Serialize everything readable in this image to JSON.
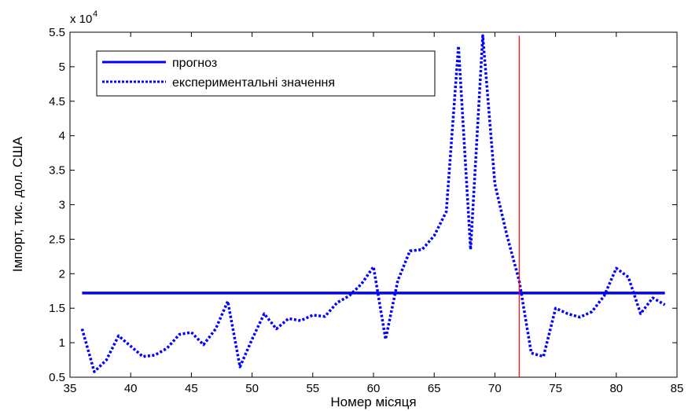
{
  "chart_data": {
    "type": "line",
    "xlabel": "Номер місяця",
    "ylabel": "Імпорт, тис. дол. США",
    "y_multiplier_label": "x 10",
    "y_multiplier_exponent": "4",
    "xlim": [
      35,
      85
    ],
    "ylim": [
      0.5,
      5.5
    ],
    "x_ticks": [
      35,
      40,
      45,
      50,
      55,
      60,
      65,
      70,
      75,
      80,
      85
    ],
    "y_ticks": [
      0.5,
      1,
      1.5,
      2,
      2.5,
      3,
      3.5,
      4,
      4.5,
      5,
      5.5
    ],
    "x_tick_labels": [
      "35",
      "40",
      "45",
      "50",
      "55",
      "60",
      "65",
      "70",
      "75",
      "80",
      "85"
    ],
    "y_tick_labels": [
      "0.5",
      "1",
      "1.5",
      "2",
      "2.5",
      "3",
      "3.5",
      "4",
      "4.5",
      "5",
      "5.5"
    ],
    "grid": false,
    "legend_position": "top-left",
    "series": [
      {
        "name": "прогноз",
        "style": "solid",
        "color": "#0000ff",
        "x": [
          36,
          84
        ],
        "y": [
          1.72,
          1.72
        ]
      },
      {
        "name": "експериментальні значення",
        "style": "dotted",
        "color": "#0000ff",
        "x": [
          36,
          37,
          38,
          39,
          40,
          41,
          42,
          43,
          44,
          45,
          46,
          47,
          48,
          49,
          50,
          51,
          52,
          53,
          54,
          55,
          56,
          57,
          58,
          59,
          60,
          61,
          62,
          63,
          64,
          65,
          66,
          67,
          68,
          69,
          70,
          71,
          72,
          73,
          74,
          75,
          76,
          77,
          78,
          79,
          80,
          81,
          82,
          83,
          84
        ],
        "y": [
          1.2,
          0.58,
          0.75,
          1.1,
          0.95,
          0.8,
          0.82,
          0.92,
          1.12,
          1.15,
          0.97,
          1.2,
          1.6,
          0.65,
          1.05,
          1.42,
          1.2,
          1.35,
          1.32,
          1.4,
          1.38,
          1.58,
          1.68,
          1.85,
          2.1,
          1.05,
          1.9,
          2.33,
          2.35,
          2.55,
          2.9,
          5.3,
          2.35,
          5.45,
          3.3,
          2.55,
          1.9,
          0.85,
          0.8,
          1.5,
          1.42,
          1.37,
          1.45,
          1.68,
          2.08,
          1.95,
          1.42,
          1.65,
          1.55
        ]
      },
      {
        "name": "",
        "style": "solid",
        "color": "#ff0000",
        "x": [
          72,
          72
        ],
        "y": [
          0.5,
          5.45
        ]
      }
    ]
  }
}
